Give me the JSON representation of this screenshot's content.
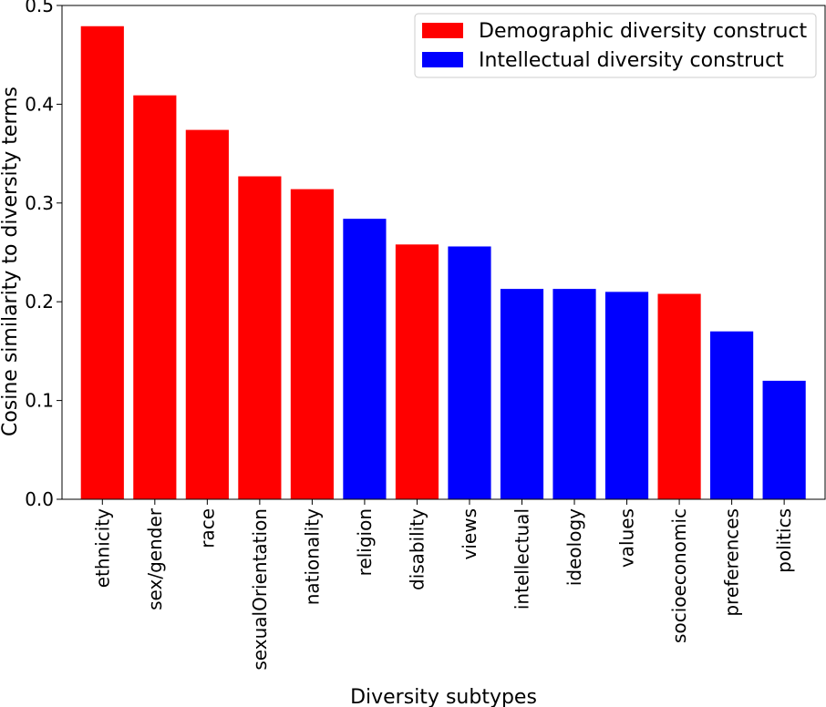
{
  "chart_data": {
    "type": "bar",
    "xlabel": "Diversity subtypes",
    "ylabel": "Cosine similarity to diversity terms",
    "ylim": [
      0,
      0.5
    ],
    "yticks": [
      0.0,
      0.1,
      0.2,
      0.3,
      0.4,
      0.5
    ],
    "ytick_labels": [
      "0.0",
      "0.1",
      "0.2",
      "0.3",
      "0.4",
      "0.5"
    ],
    "grid": false,
    "legend_position": "top-right",
    "colors": {
      "demographic": "#ff0000",
      "intellectual": "#0000ff"
    },
    "legend": [
      {
        "key": "demographic",
        "label": "Demographic diversity construct"
      },
      {
        "key": "intellectual",
        "label": "Intellectual diversity construct"
      }
    ],
    "categories": [
      "ethnicity",
      "sex/gender",
      "race",
      "sexualOrientation",
      "nationality",
      "religion",
      "disability",
      "views",
      "intellectual",
      "ideology",
      "values",
      "socioeconomic",
      "preferences",
      "politics"
    ],
    "values": [
      0.479,
      0.409,
      0.374,
      0.327,
      0.314,
      0.284,
      0.258,
      0.256,
      0.213,
      0.213,
      0.21,
      0.208,
      0.17,
      0.12
    ],
    "construct": [
      "demographic",
      "demographic",
      "demographic",
      "demographic",
      "demographic",
      "intellectual",
      "demographic",
      "intellectual",
      "intellectual",
      "intellectual",
      "intellectual",
      "demographic",
      "intellectual",
      "intellectual"
    ]
  }
}
